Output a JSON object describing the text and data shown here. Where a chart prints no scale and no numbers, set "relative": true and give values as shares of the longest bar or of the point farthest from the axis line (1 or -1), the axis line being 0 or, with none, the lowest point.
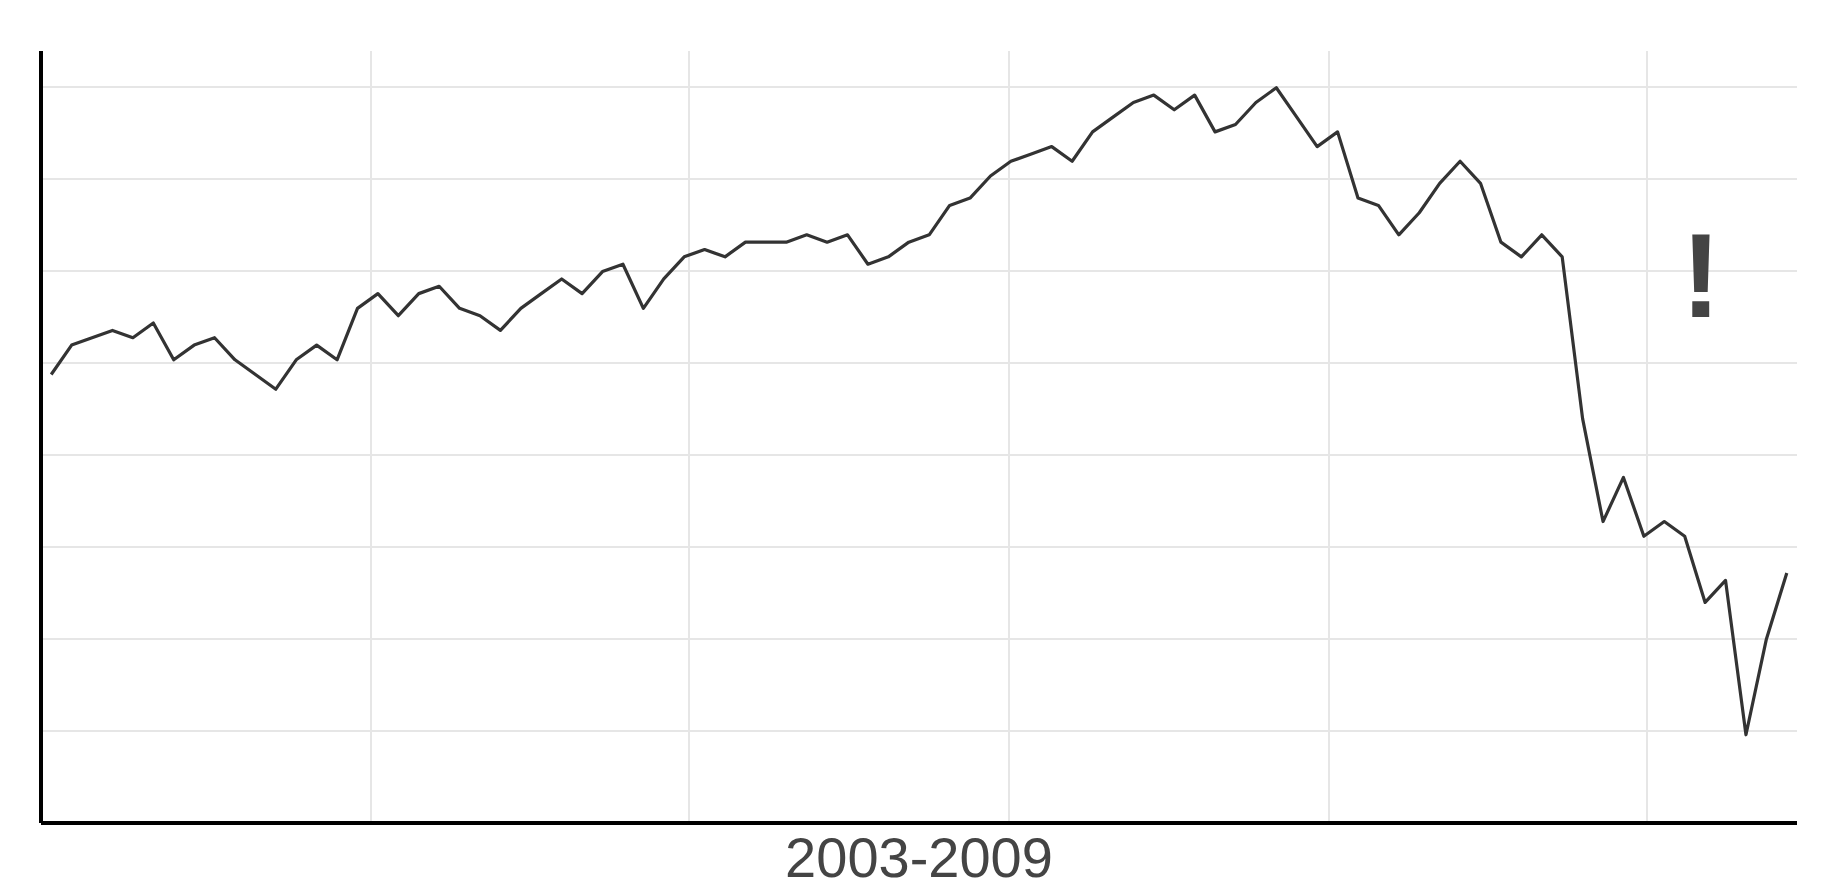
{
  "chart_data": {
    "type": "line",
    "title": "2003-2009",
    "relative": true,
    "grid": true,
    "categories": [
      null,
      null,
      null,
      null,
      null,
      null,
      null,
      null,
      null,
      null,
      null,
      null,
      null,
      null,
      null,
      null,
      null,
      null,
      null,
      null,
      null,
      null,
      null,
      null,
      null,
      null,
      null,
      null,
      null,
      null,
      null,
      null,
      null,
      null,
      null,
      null,
      null,
      null,
      null,
      null,
      null,
      null,
      null,
      null,
      null,
      null,
      null,
      null,
      null,
      null,
      null,
      null,
      null,
      null,
      null,
      null,
      null,
      null,
      null,
      null,
      null,
      null,
      null,
      null,
      null,
      null,
      null,
      null,
      null,
      null,
      null,
      null,
      null,
      null,
      null,
      null,
      null,
      null,
      null,
      null,
      null,
      null,
      null,
      null,
      null,
      null
    ],
    "series": [
      {
        "color": "#333333",
        "values": [
          0.61,
          0.65,
          0.66,
          0.67,
          0.66,
          0.68,
          0.63,
          0.65,
          0.66,
          0.63,
          0.61,
          0.59,
          0.63,
          0.65,
          0.63,
          0.7,
          0.72,
          0.69,
          0.72,
          0.73,
          0.7,
          0.69,
          0.67,
          0.7,
          0.72,
          0.74,
          0.72,
          0.75,
          0.76,
          0.7,
          0.74,
          0.77,
          0.78,
          0.77,
          0.79,
          0.79,
          0.79,
          0.8,
          0.79,
          0.8,
          0.76,
          0.77,
          0.79,
          0.8,
          0.84,
          0.85,
          0.88,
          0.9,
          0.91,
          0.92,
          0.9,
          0.94,
          0.96,
          0.98,
          0.99,
          0.97,
          0.99,
          0.94,
          0.95,
          0.98,
          1,
          0.96,
          0.92,
          0.94,
          0.85,
          0.84,
          0.8,
          0.83,
          0.87,
          0.9,
          0.87,
          0.79,
          0.77,
          0.8,
          0.77,
          0.55,
          0.41,
          0.47,
          0.39,
          0.41,
          0.39,
          0.3,
          0.33,
          0.12,
          0.25,
          0.34
        ]
      }
    ],
    "annotations": [
      "!"
    ]
  }
}
